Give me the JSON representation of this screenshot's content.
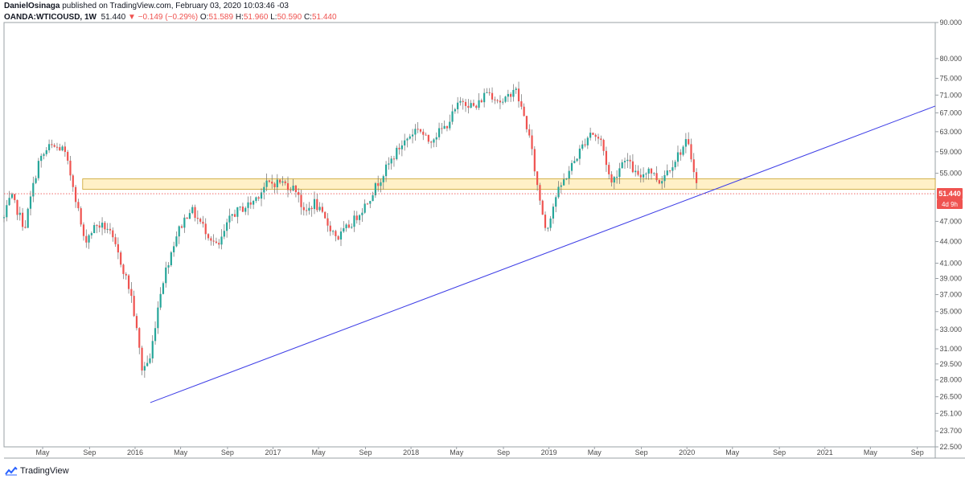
{
  "header": {
    "author": "DanielOsinaga",
    "published_text": "published on TradingView.com, February 03, 2020 10:03:46 -03",
    "symbol": "OANDA:WTICOUSD, 1W",
    "last": "51.440",
    "change": "−0.149 (−0.29%)",
    "open_label": "O:",
    "open": "51.589",
    "high_label": "H:",
    "high": "51.960",
    "low_label": "L:",
    "low": "50.590",
    "close_label": "C:",
    "close": "51.440"
  },
  "price_badge": {
    "value": "51.440",
    "countdown": "4d 9h",
    "color": "#ef5350"
  },
  "footer": {
    "brand": "TradingView"
  },
  "colors": {
    "up": "#26a69a",
    "down": "#ef5350",
    "trendline": "#3d3de6",
    "zone_fill": "#fff0c7",
    "zone_border": "#c9a227"
  },
  "chart_data": {
    "type": "candlestick",
    "ylim": [
      22.5,
      90
    ],
    "yscale": "log",
    "yticks": [
      "90.000",
      "80.000",
      "75.000",
      "71.000",
      "67.000",
      "63.000",
      "59.000",
      "55.000",
      "51.440",
      "47.000",
      "44.000",
      "41.000",
      "39.000",
      "37.000",
      "35.000",
      "33.000",
      "31.000",
      "29.500",
      "28.000",
      "26.500",
      "25.100",
      "23.700",
      "22.500"
    ],
    "xticks": [
      {
        "label": "May",
        "t": 2015.33
      },
      {
        "label": "Sep",
        "t": 2015.67
      },
      {
        "label": "2016",
        "t": 2016.0
      },
      {
        "label": "May",
        "t": 2016.33
      },
      {
        "label": "Sep",
        "t": 2016.67
      },
      {
        "label": "2017",
        "t": 2017.0
      },
      {
        "label": "May",
        "t": 2017.33
      },
      {
        "label": "Sep",
        "t": 2017.67
      },
      {
        "label": "2018",
        "t": 2018.0
      },
      {
        "label": "May",
        "t": 2018.33
      },
      {
        "label": "Sep",
        "t": 2018.67
      },
      {
        "label": "2019",
        "t": 2019.0
      },
      {
        "label": "May",
        "t": 2019.33
      },
      {
        "label": "Sep",
        "t": 2019.67
      },
      {
        "label": "2020",
        "t": 2020.0
      },
      {
        "label": "May",
        "t": 2020.33
      },
      {
        "label": "Sep",
        "t": 2020.67
      },
      {
        "label": "2021",
        "t": 2021.0
      },
      {
        "label": "May",
        "t": 2021.33
      },
      {
        "label": "Sep",
        "t": 2021.67
      }
    ],
    "xlim": [
      2015.05,
      2021.8
    ],
    "anchors": [
      [
        2015.05,
        47.5
      ],
      [
        2015.1,
        51
      ],
      [
        2015.2,
        46
      ],
      [
        2015.3,
        57
      ],
      [
        2015.38,
        60
      ],
      [
        2015.48,
        59.5
      ],
      [
        2015.55,
        53
      ],
      [
        2015.63,
        44
      ],
      [
        2015.72,
        46.5
      ],
      [
        2015.8,
        46
      ],
      [
        2015.9,
        41
      ],
      [
        2015.97,
        37
      ],
      [
        2016.05,
        29
      ],
      [
        2016.11,
        30
      ],
      [
        2016.19,
        38
      ],
      [
        2016.3,
        45
      ],
      [
        2016.4,
        49
      ],
      [
        2016.5,
        46
      ],
      [
        2016.6,
        43
      ],
      [
        2016.7,
        48
      ],
      [
        2016.85,
        50
      ],
      [
        2016.95,
        53
      ],
      [
        2017.05,
        53.5
      ],
      [
        2017.18,
        52
      ],
      [
        2017.22,
        48
      ],
      [
        2017.3,
        50
      ],
      [
        2017.38,
        47
      ],
      [
        2017.47,
        44.5
      ],
      [
        2017.58,
        47
      ],
      [
        2017.68,
        50
      ],
      [
        2017.8,
        55
      ],
      [
        2017.92,
        60
      ],
      [
        2018.05,
        64
      ],
      [
        2018.12,
        61
      ],
      [
        2018.25,
        64
      ],
      [
        2018.37,
        70
      ],
      [
        2018.47,
        68
      ],
      [
        2018.55,
        72
      ],
      [
        2018.67,
        69
      ],
      [
        2018.75,
        73
      ],
      [
        2018.85,
        63
      ],
      [
        2018.92,
        52
      ],
      [
        2018.98,
        45.5
      ],
      [
        2019.05,
        51
      ],
      [
        2019.2,
        58
      ],
      [
        2019.3,
        63
      ],
      [
        2019.38,
        61
      ],
      [
        2019.45,
        53
      ],
      [
        2019.55,
        58
      ],
      [
        2019.65,
        54
      ],
      [
        2019.72,
        56
      ],
      [
        2019.8,
        53.5
      ],
      [
        2019.9,
        57
      ],
      [
        2020.0,
        61
      ],
      [
        2020.05,
        56
      ],
      [
        2020.08,
        51.44
      ]
    ],
    "horizontal_zone": {
      "from_t": 2015.62,
      "price_low": 52.2,
      "price_high": 54.0
    },
    "trendline": {
      "p1": {
        "t": 2016.11,
        "price": 26.0
      },
      "p2": {
        "t": 2021.8,
        "price": 68.5
      }
    },
    "last_price_line": 51.44
  }
}
